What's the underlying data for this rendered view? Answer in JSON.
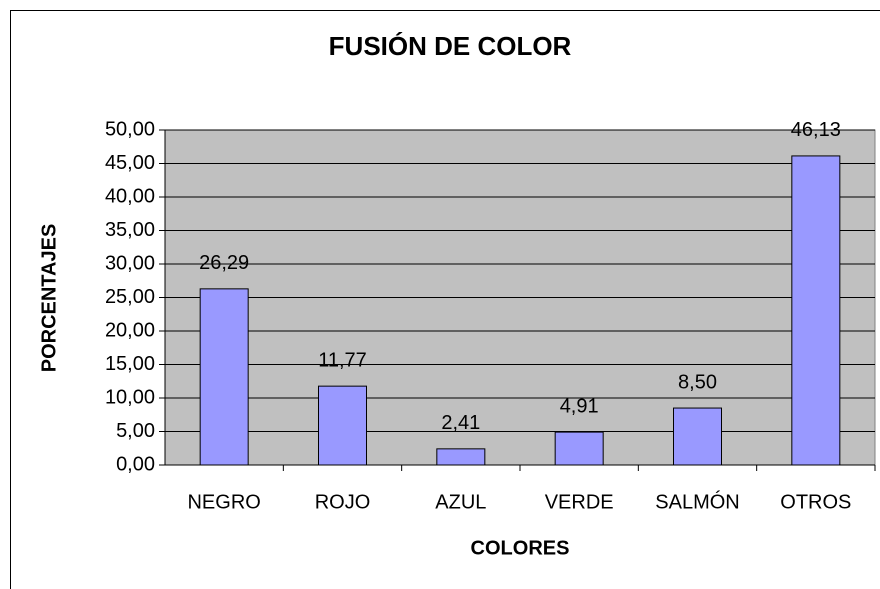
{
  "chart_data": {
    "type": "bar",
    "title": "FUSIÓN DE COLOR",
    "x_label": "COLORES",
    "y_label": "PORCENTAJES",
    "categories": [
      "NEGRO",
      "ROJO",
      "AZUL",
      "VERDE",
      "SALMÓN",
      "OTROS"
    ],
    "values": [
      26.29,
      11.77,
      2.41,
      4.91,
      8.5,
      46.13
    ],
    "value_labels": [
      "26,29",
      "11,77",
      "2,41",
      "4,91",
      "8,50",
      "46,13"
    ],
    "color": "#9999ff",
    "ylim": [
      0,
      50
    ],
    "yticks": [
      {
        "value": 0,
        "label": "0,00"
      },
      {
        "value": 5,
        "label": "5,00"
      },
      {
        "value": 10,
        "label": "10,00"
      },
      {
        "value": 15,
        "label": "15,00"
      },
      {
        "value": 20,
        "label": "20,00"
      },
      {
        "value": 25,
        "label": "25,00"
      },
      {
        "value": 30,
        "label": "30,00"
      },
      {
        "value": 35,
        "label": "35,00"
      },
      {
        "value": 40,
        "label": "40,00"
      },
      {
        "value": 45,
        "label": "45,00"
      },
      {
        "value": 50,
        "label": "50,00"
      }
    ],
    "grid": true
  }
}
